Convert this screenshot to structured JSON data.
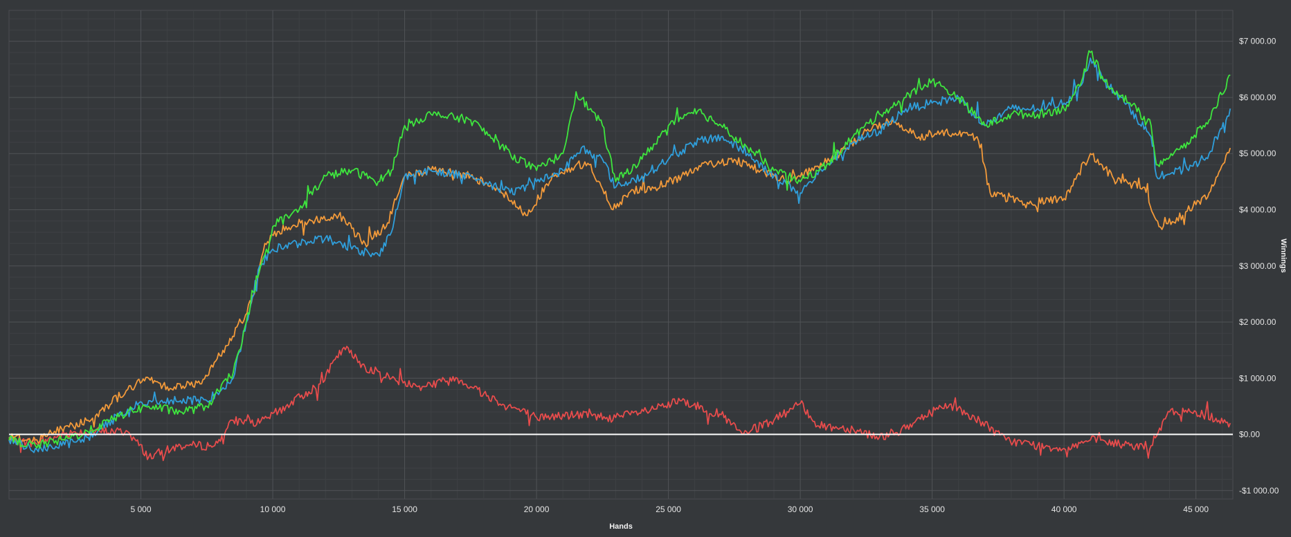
{
  "chart_data": {
    "type": "line",
    "xlabel": "Hands",
    "ylabel": "Winnings",
    "xlim": [
      0,
      46400
    ],
    "ylim": [
      -1150,
      7550
    ],
    "x_ticks": [
      5000,
      10000,
      15000,
      20000,
      25000,
      30000,
      35000,
      40000,
      45000
    ],
    "x_tick_labels": [
      "5 000",
      "10 000",
      "15 000",
      "20 000",
      "25 000",
      "30 000",
      "35 000",
      "40 000",
      "45 000"
    ],
    "y_ticks": [
      -1000,
      0,
      1000,
      2000,
      3000,
      4000,
      5000,
      6000,
      7000
    ],
    "y_tick_labels": [
      "-$1 000.00",
      "$0.00",
      "$1 000.00",
      "$2 000.00",
      "$3 000.00",
      "$4 000.00",
      "$5 000.00",
      "$6 000.00",
      "$7 000.00"
    ],
    "grid": true,
    "zero_line": true,
    "series": [
      {
        "color": "#e84c4c",
        "x": [
          0,
          1000,
          2500,
          4500,
          5300,
          6500,
          7800,
          8500,
          9500,
          10500,
          11800,
          12700,
          13500,
          14500,
          15500,
          17000,
          18500,
          20000,
          21500,
          23000,
          24500,
          25500,
          27000,
          27800,
          29000,
          30000,
          30700,
          32000,
          33000,
          34000,
          35500,
          36800,
          37800,
          39000,
          40000,
          41000,
          42500,
          43300,
          44000,
          45000,
          46300
        ],
        "y": [
          -100,
          -150,
          50,
          50,
          -400,
          -200,
          -200,
          250,
          200,
          500,
          900,
          1550,
          1200,
          1000,
          850,
          1000,
          600,
          300,
          350,
          300,
          450,
          600,
          350,
          0,
          250,
          550,
          150,
          100,
          -50,
          100,
          550,
          250,
          -100,
          -200,
          -250,
          -100,
          -200,
          -200,
          400,
          400,
          200
        ]
      },
      {
        "color": "#f39a3a",
        "x": [
          0,
          1000,
          2000,
          3000,
          4500,
          5300,
          6000,
          7300,
          8000,
          8800,
          9300,
          9700,
          10500,
          11500,
          12500,
          13500,
          14300,
          15000,
          16000,
          17500,
          18500,
          19600,
          20500,
          21500,
          22000,
          22900,
          23500,
          24500,
          25500,
          26500,
          27500,
          28500,
          29500,
          30500,
          31500,
          32500,
          33500,
          34500,
          35500,
          36700,
          37200,
          38500,
          40000,
          41000,
          42000,
          43000,
          43600,
          44500,
          45500,
          46300
        ],
        "y": [
          -50,
          -100,
          100,
          250,
          800,
          1000,
          850,
          900,
          1400,
          2000,
          2500,
          3400,
          3700,
          3800,
          3900,
          3400,
          3700,
          4600,
          4700,
          4600,
          4400,
          3900,
          4500,
          4800,
          4800,
          4000,
          4300,
          4400,
          4600,
          4800,
          4900,
          4700,
          4500,
          4700,
          5000,
          5400,
          5600,
          5300,
          5400,
          5300,
          4300,
          4100,
          4200,
          5000,
          4500,
          4400,
          3700,
          3900,
          4300,
          5100
        ]
      },
      {
        "color": "#2f9fdc",
        "x": [
          0,
          1000,
          2000,
          3000,
          4500,
          5300,
          6500,
          7500,
          8500,
          9000,
          9500,
          10000,
          11000,
          12000,
          13000,
          14000,
          14500,
          15000,
          16000,
          17500,
          19000,
          20000,
          21000,
          21700,
          22500,
          23000,
          24000,
          25000,
          26000,
          27000,
          28000,
          29000,
          30000,
          31000,
          32000,
          33000,
          34000,
          35000,
          36000,
          37000,
          38000,
          39000,
          40000,
          40600,
          41000,
          41500,
          42500,
          43300,
          43500,
          44500,
          45500,
          46300
        ],
        "y": [
          -100,
          -250,
          -200,
          -50,
          450,
          600,
          600,
          600,
          1000,
          2000,
          3000,
          3300,
          3400,
          3500,
          3300,
          3200,
          3600,
          4600,
          4700,
          4600,
          4300,
          4500,
          4700,
          5100,
          4900,
          4400,
          4600,
          4900,
          5200,
          5300,
          5000,
          4600,
          4300,
          4800,
          5200,
          5400,
          5800,
          5900,
          6000,
          5500,
          5800,
          5800,
          5900,
          6200,
          6700,
          6300,
          5800,
          5300,
          4600,
          4700,
          5000,
          5800
        ]
      },
      {
        "color": "#3ee63e",
        "x": [
          0,
          1000,
          2000,
          3000,
          4500,
          5300,
          6500,
          7500,
          8500,
          9000,
          9700,
          10000,
          11000,
          12000,
          13000,
          14000,
          14500,
          15000,
          16000,
          17500,
          19000,
          20000,
          21000,
          21500,
          22500,
          23000,
          24000,
          25000,
          26000,
          27000,
          28000,
          29000,
          30000,
          31000,
          32000,
          33000,
          34000,
          35000,
          36000,
          37000,
          38000,
          39000,
          40000,
          40600,
          41000,
          41500,
          42500,
          43300,
          43500,
          44500,
          45500,
          46300
        ],
        "y": [
          -100,
          -200,
          -100,
          50,
          400,
          500,
          400,
          500,
          1100,
          2000,
          3200,
          3700,
          4000,
          4600,
          4700,
          4500,
          4700,
          5500,
          5700,
          5600,
          5000,
          4700,
          5000,
          6100,
          5500,
          4500,
          4900,
          5500,
          5800,
          5500,
          5100,
          4700,
          4500,
          4800,
          5300,
          5700,
          6000,
          6300,
          6000,
          5500,
          5700,
          5700,
          5800,
          6200,
          6800,
          6300,
          5900,
          5500,
          4800,
          5100,
          5600,
          6400
        ]
      }
    ]
  }
}
